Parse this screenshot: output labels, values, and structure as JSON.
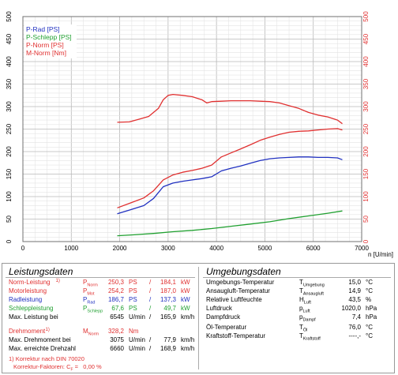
{
  "chart_data": {
    "type": "line",
    "xlabel": "n [U/min]",
    "xlim": [
      0,
      7000
    ],
    "x_ticks": [
      "0",
      "1000",
      "2000",
      "3000",
      "4000",
      "5000",
      "6000",
      "7000"
    ],
    "y_left_lim": [
      0,
      500
    ],
    "y_left_ticks": [
      "0",
      "50",
      "100",
      "150",
      "200",
      "250",
      "300",
      "350",
      "400",
      "450",
      "500"
    ],
    "y_right_lim": [
      0,
      500
    ],
    "y_right_ticks": [
      "0",
      "50",
      "100",
      "150",
      "200",
      "250",
      "300",
      "350",
      "400",
      "450",
      "500"
    ],
    "grid": true,
    "legend_position": "top-left",
    "series": [
      {
        "name": "P-Rad [PS]",
        "color": "#2030c0",
        "axis": "left",
        "x": [
          1950,
          2200,
          2500,
          2700,
          2900,
          3100,
          3300,
          3500,
          3700,
          3900,
          4100,
          4300,
          4500,
          4700,
          4900,
          5100,
          5300,
          5500,
          5700,
          5900,
          6100,
          6300,
          6500,
          6600
        ],
        "y": [
          62,
          70,
          80,
          96,
          122,
          130,
          134,
          137,
          140,
          144,
          157,
          163,
          168,
          174,
          180,
          184,
          186,
          187,
          188,
          188,
          187,
          187,
          186,
          182
        ]
      },
      {
        "name": "P-Schlepp [PS]",
        "color": "#20a030",
        "axis": "left",
        "x": [
          1950,
          2300,
          2700,
          3100,
          3500,
          3900,
          4300,
          4700,
          5100,
          5500,
          5900,
          6300,
          6600
        ],
        "y": [
          13,
          15,
          18,
          22,
          25,
          29,
          34,
          39,
          44,
          51,
          57,
          63,
          68
        ]
      },
      {
        "name": "P-Norm [PS]",
        "color": "#e03030",
        "axis": "left",
        "x": [
          1950,
          2200,
          2500,
          2700,
          2900,
          3100,
          3300,
          3500,
          3700,
          3900,
          4100,
          4300,
          4500,
          4700,
          4900,
          5100,
          5300,
          5500,
          5700,
          5900,
          6100,
          6300,
          6500,
          6600
        ],
        "y": [
          75,
          85,
          97,
          113,
          137,
          148,
          154,
          158,
          163,
          170,
          188,
          197,
          206,
          215,
          225,
          232,
          238,
          243,
          245,
          246,
          248,
          250,
          251,
          248
        ]
      },
      {
        "name": "M-Norm [Nm]",
        "color": "#e03030",
        "axis": "right",
        "x": [
          1950,
          2200,
          2400,
          2600,
          2800,
          2900,
          3000,
          3100,
          3300,
          3500,
          3700,
          3800,
          3900,
          4100,
          4300,
          4500,
          4700,
          4900,
          5100,
          5300,
          5500,
          5700,
          5900,
          6100,
          6300,
          6500,
          6600
        ],
        "y": [
          265,
          266,
          272,
          278,
          296,
          315,
          325,
          327,
          325,
          322,
          315,
          308,
          311,
          312,
          313,
          313,
          313,
          312,
          311,
          308,
          302,
          296,
          287,
          281,
          277,
          270,
          262
        ]
      }
    ]
  },
  "left": {
    "title": "Leistungsdaten",
    "rows": [
      {
        "label": "Norm-Leistung",
        "ref": "1)",
        "sym": "P",
        "sub": "Norm",
        "v1": "250,3",
        "u1": "PS",
        "sep": "/",
        "v2": "184,1",
        "u2": "kW",
        "color": "#e03030"
      },
      {
        "label": "Motorleistung",
        "ref": "",
        "sym": "P",
        "sub": "Mot",
        "v1": "254,2",
        "u1": "PS",
        "sep": "/",
        "v2": "187,0",
        "u2": "kW",
        "color": "#e03030"
      },
      {
        "label": "Radleistung",
        "ref": "",
        "sym": "P",
        "sub": "Rad",
        "v1": "186,7",
        "u1": "PS",
        "sep": "/",
        "v2": "137,3",
        "u2": "kW",
        "color": "#2030c0"
      },
      {
        "label": "Schleppleistung",
        "ref": "",
        "sym": "P",
        "sub": "Schlepp",
        "v1": "67,6",
        "u1": "PS",
        "sep": "/",
        "v2": "49,7",
        "u2": "kW",
        "color": "#20a030"
      },
      {
        "label": "Max. Leistung bei",
        "ref": "",
        "sym": "",
        "sub": "",
        "v1": "6545",
        "u1": "U/min",
        "sep": "/",
        "v2": "165,9",
        "u2": "km/h",
        "color": "#000000"
      },
      {
        "label": "Drehmoment",
        "ref": "1)",
        "sym": "M",
        "sub": "Norm",
        "v1": "328,2",
        "u1": "Nm",
        "sep": "",
        "v2": "",
        "u2": "",
        "color": "#e03030"
      },
      {
        "label": "Max. Drehmoment bei",
        "ref": "",
        "sym": "",
        "sub": "",
        "v1": "3075",
        "u1": "U/min",
        "sep": "/",
        "v2": "77,9",
        "u2": "km/h",
        "color": "#000000"
      },
      {
        "label": "Max. erreichte Drehzahl",
        "ref": "",
        "sym": "",
        "sub": "",
        "v1": "6660",
        "u1": "U/min",
        "sep": "/",
        "v2": "168,9",
        "u2": "km/h",
        "color": "#000000"
      }
    ],
    "footnote1": "1) Korrektur nach DIN 70020",
    "footnote2_prefix": "Korrektur-Faktoren: C",
    "footnote2_sub": "F",
    "footnote2_suffix": " =   0,00 %"
  },
  "right": {
    "title": "Umgebungsdaten",
    "rows": [
      {
        "label": "Umgebungs-Temperatur",
        "sym": "T",
        "sub": "Umgebung",
        "value": "15,0",
        "unit": "°C"
      },
      {
        "label": "Ansaugluft-Temperatur",
        "sym": "T",
        "sub": "Ansaugluft",
        "value": "14,9",
        "unit": "°C"
      },
      {
        "label": "Relative Luftfeuchte",
        "sym": "H",
        "sub": "Luft",
        "value": "43,5",
        "unit": "%"
      },
      {
        "label": "Luftdruck",
        "sym": "p",
        "sub": "Luft",
        "value": "1020,0",
        "unit": "hPa"
      },
      {
        "label": "Dampfdruck",
        "sym": "p",
        "sub": "Dampf",
        "value": "7,4",
        "unit": "hPa"
      },
      {
        "label": "Öl-Temperatur",
        "sym": "T",
        "sub": "Öl",
        "value": "76,0",
        "unit": "°C"
      },
      {
        "label": "Kraftstoff-Temperatur",
        "sym": "T",
        "sub": "Kraftstoff",
        "value": "----,-",
        "unit": "°C"
      }
    ]
  }
}
